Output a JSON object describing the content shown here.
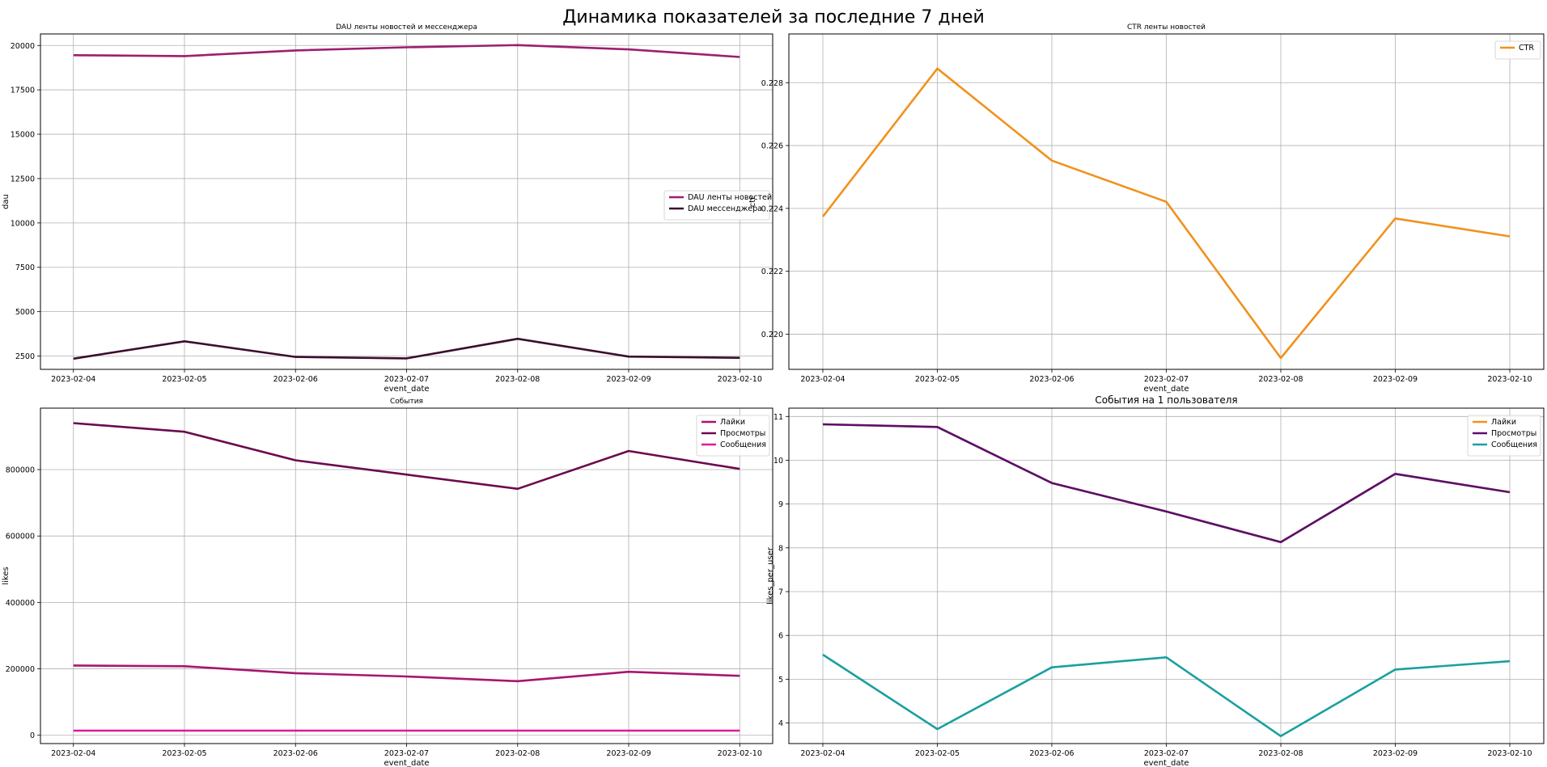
{
  "figure": {
    "title": "Динамика показателей за последние 7 дней"
  },
  "chart_data": [
    {
      "type": "line",
      "title": "DAU ленты новостей и мессенджера",
      "xlabel": "event_date",
      "ylabel": "dau",
      "x": [
        "2023-02-04",
        "2023-02-05",
        "2023-02-06",
        "2023-02-07",
        "2023-02-08",
        "2023-02-09",
        "2023-02-10"
      ],
      "ylim": [
        1750,
        20650
      ],
      "yticks": [
        2500,
        5000,
        7500,
        10000,
        12500,
        15000,
        17500,
        20000
      ],
      "ytick_labels": [
        "2500",
        "5000",
        "7500",
        "10000",
        "12500",
        "15000",
        "17500",
        "20000"
      ],
      "grid": true,
      "legend": "center-right",
      "series": [
        {
          "name": "DAU ленты новостей",
          "color": "#9c1f6e",
          "values": [
            19450,
            19400,
            19720,
            19900,
            20020,
            19780,
            19350
          ]
        },
        {
          "name": "DAU мессенджера",
          "color": "#3a0f2e",
          "values": [
            2350,
            3330,
            2450,
            2370,
            3470,
            2470,
            2400
          ]
        }
      ]
    },
    {
      "type": "line",
      "title": "CTR ленты новостей",
      "xlabel": "event_date",
      "ylabel": "ctr",
      "x": [
        "2023-02-04",
        "2023-02-05",
        "2023-02-06",
        "2023-02-07",
        "2023-02-08",
        "2023-02-09",
        "2023-02-10"
      ],
      "ylim": [
        0.21888,
        0.22955
      ],
      "yticks": [
        0.22,
        0.222,
        0.224,
        0.226,
        0.228
      ],
      "ytick_labels": [
        "0.220",
        "0.222",
        "0.224",
        "0.226",
        "0.228"
      ],
      "grid": true,
      "legend": "top-right",
      "series": [
        {
          "name": "CTR",
          "color": "#f0921d",
          "values": [
            0.22374,
            0.22845,
            0.22552,
            0.22421,
            0.21924,
            0.22368,
            0.22311
          ]
        }
      ]
    },
    {
      "type": "line",
      "title": "События",
      "xlabel": "event_date",
      "ylabel": "likes",
      "x": [
        "2023-02-04",
        "2023-02-05",
        "2023-02-06",
        "2023-02-07",
        "2023-02-08",
        "2023-02-09",
        "2023-02-10"
      ],
      "ylim": [
        -25000,
        985000
      ],
      "yticks": [
        0,
        200000,
        400000,
        600000,
        800000
      ],
      "ytick_labels": [
        "0",
        "200000",
        "400000",
        "600000",
        "800000"
      ],
      "grid": true,
      "legend": "top-right",
      "series": [
        {
          "name": "Лайки",
          "color": "#a8156f",
          "values": [
            210000,
            208000,
            187000,
            177000,
            163000,
            191000,
            179000
          ]
        },
        {
          "name": "Просмотры",
          "color": "#6b0a4e",
          "values": [
            940000,
            914000,
            828000,
            785000,
            742000,
            856000,
            802000
          ]
        },
        {
          "name": "Сообщения",
          "color": "#e0199a",
          "values": [
            14000,
            14000,
            14000,
            14000,
            14000,
            14000,
            14000
          ]
        }
      ]
    },
    {
      "type": "line",
      "title": "События на 1 пользователя",
      "xlabel": "event_date",
      "ylabel": "likes_per_user",
      "x": [
        "2023-02-04",
        "2023-02-05",
        "2023-02-06",
        "2023-02-07",
        "2023-02-08",
        "2023-02-09",
        "2023-02-10"
      ],
      "ylim": [
        3.53,
        11.19
      ],
      "yticks": [
        4,
        5,
        6,
        7,
        8,
        9,
        10,
        11
      ],
      "ytick_labels": [
        "4",
        "5",
        "6",
        "7",
        "8",
        "9",
        "10",
        "11"
      ],
      "grid": true,
      "legend": "top-right",
      "series": [
        {
          "name": "Лайки",
          "color": "#f0921d",
          "values": [
            10.82,
            10.76,
            9.48,
            8.83,
            8.13,
            9.69,
            9.27
          ]
        },
        {
          "name": "Просмотры",
          "color": "#5a0f6e",
          "values": [
            10.82,
            10.76,
            9.48,
            8.83,
            8.13,
            9.69,
            9.27
          ]
        },
        {
          "name": "Сообщения",
          "color": "#1aa0a0",
          "values": [
            5.56,
            3.86,
            5.27,
            5.5,
            3.7,
            5.22,
            5.41
          ]
        }
      ]
    }
  ]
}
